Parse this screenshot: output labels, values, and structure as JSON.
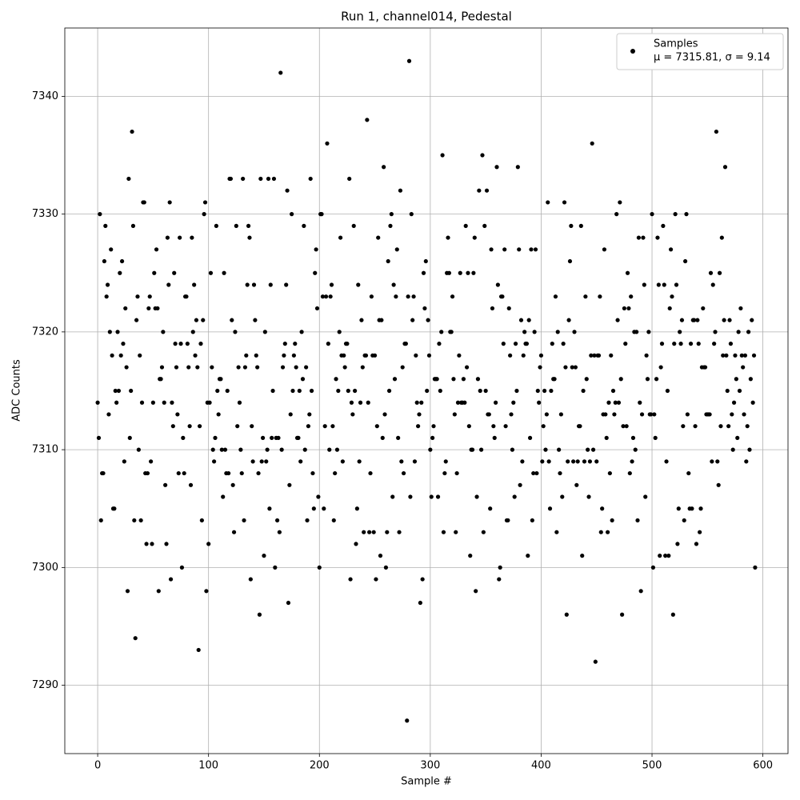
{
  "chart_data": {
    "type": "scatter",
    "title": "Run 1, channel014, Pedestal",
    "x_label": "Sample #",
    "y_label": "ADC Counts",
    "xlim": [
      -29.65,
      622.65
    ],
    "ylim": [
      7284.2,
      7345.8
    ],
    "xticks": [
      0,
      100,
      200,
      300,
      400,
      500,
      600
    ],
    "yticks": [
      7290,
      7300,
      7310,
      7320,
      7330,
      7340
    ],
    "grid": true,
    "legend": "upper right",
    "legend_note": "μ = 7315.81, σ = 9.14",
    "series": [
      {
        "name": "Samples",
        "color": "#000000",
        "x": [
          0,
          1,
          2,
          3,
          4,
          5,
          6,
          7,
          8,
          9,
          10,
          11,
          12,
          13,
          14,
          15,
          16,
          17,
          18,
          19,
          20,
          21,
          22,
          23,
          24,
          25,
          26,
          27,
          28,
          29,
          30,
          31,
          32,
          33,
          34,
          35,
          36,
          37,
          38,
          39,
          40,
          41,
          42,
          43,
          44,
          45,
          46,
          47,
          48,
          49,
          50,
          51,
          52,
          53,
          54,
          55,
          56,
          57,
          58,
          59,
          60,
          61,
          62,
          63,
          64,
          65,
          66,
          67,
          68,
          69,
          70,
          71,
          72,
          73,
          74,
          75,
          76,
          77,
          78,
          79,
          80,
          81,
          82,
          83,
          84,
          85,
          86,
          87,
          88,
          89,
          90,
          91,
          92,
          93,
          94,
          95,
          96,
          97,
          98,
          99,
          100,
          101,
          102,
          103,
          104,
          105,
          106,
          107,
          108,
          109,
          110,
          111,
          112,
          113,
          114,
          115,
          116,
          117,
          118,
          119,
          120,
          121,
          122,
          123,
          124,
          125,
          126,
          127,
          128,
          129,
          130,
          131,
          132,
          133,
          134,
          135,
          136,
          137,
          138,
          139,
          140,
          141,
          142,
          143,
          144,
          145,
          146,
          147,
          148,
          149,
          150,
          151,
          152,
          153,
          154,
          155,
          156,
          157,
          158,
          159,
          160,
          161,
          162,
          163,
          164,
          165,
          166,
          167,
          168,
          169,
          170,
          171,
          172,
          173,
          174,
          175,
          176,
          177,
          178,
          179,
          180,
          181,
          182,
          183,
          184,
          185,
          186,
          187,
          188,
          189,
          190,
          191,
          192,
          193,
          194,
          195,
          196,
          197,
          198,
          199,
          200,
          201,
          202,
          203,
          204,
          205,
          206,
          207,
          208,
          209,
          210,
          211,
          212,
          213,
          214,
          215,
          216,
          217,
          218,
          219,
          220,
          221,
          222,
          223,
          224,
          225,
          226,
          227,
          228,
          229,
          230,
          231,
          232,
          233,
          234,
          235,
          236,
          237,
          238,
          239,
          240,
          241,
          242,
          243,
          244,
          245,
          246,
          247,
          248,
          249,
          250,
          251,
          252,
          253,
          254,
          255,
          256,
          257,
          258,
          259,
          260,
          261,
          262,
          263,
          264,
          265,
          266,
          267,
          268,
          269,
          270,
          271,
          272,
          273,
          274,
          275,
          276,
          277,
          278,
          279,
          280,
          281,
          282,
          283,
          284,
          285,
          286,
          287,
          288,
          289,
          290,
          291,
          292,
          293,
          294,
          295,
          296,
          297,
          298,
          299,
          300,
          301,
          302,
          303,
          304,
          305,
          306,
          307,
          308,
          309,
          310,
          311,
          312,
          313,
          314,
          315,
          316,
          317,
          318,
          319,
          320,
          321,
          322,
          323,
          324,
          325,
          326,
          327,
          328,
          329,
          330,
          331,
          332,
          333,
          334,
          335,
          336,
          337,
          338,
          339,
          340,
          341,
          342,
          343,
          344,
          345,
          346,
          347,
          348,
          349,
          350,
          351,
          352,
          353,
          354,
          355,
          356,
          357,
          358,
          359,
          360,
          361,
          362,
          363,
          364,
          365,
          366,
          367,
          368,
          369,
          370,
          371,
          372,
          373,
          374,
          375,
          376,
          377,
          378,
          379,
          380,
          381,
          382,
          383,
          384,
          385,
          386,
          387,
          388,
          389,
          390,
          391,
          392,
          393,
          394,
          395,
          396,
          397,
          398,
          399,
          400,
          401,
          402,
          403,
          404,
          405,
          406,
          407,
          408,
          409,
          410,
          411,
          412,
          413,
          414,
          415,
          416,
          417,
          418,
          419,
          420,
          421,
          422,
          423,
          424,
          425,
          426,
          427,
          428,
          429,
          430,
          431,
          432,
          433,
          434,
          435,
          436,
          437,
          438,
          439,
          440,
          441,
          442,
          443,
          444,
          445,
          446,
          447,
          448,
          449,
          450,
          451,
          452,
          453,
          454,
          455,
          456,
          457,
          458,
          459,
          460,
          461,
          462,
          463,
          464,
          465,
          466,
          467,
          468,
          469,
          470,
          471,
          472,
          473,
          474,
          475,
          476,
          477,
          478,
          479,
          480,
          481,
          482,
          483,
          484,
          485,
          486,
          487,
          488,
          489,
          490,
          491,
          492,
          493,
          494,
          495,
          496,
          497,
          498,
          499,
          500,
          501,
          502,
          503,
          504,
          505,
          506,
          507,
          508,
          509,
          510,
          511,
          512,
          513,
          514,
          515,
          516,
          517,
          518,
          519,
          520,
          521,
          522,
          523,
          524,
          525,
          526,
          527,
          528,
          529,
          530,
          531,
          532,
          533,
          534,
          535,
          536,
          537,
          538,
          539,
          540,
          541,
          542,
          543,
          544,
          545,
          546,
          547,
          548,
          549,
          550,
          551,
          552,
          553,
          554,
          555,
          556,
          557,
          558,
          559,
          560,
          561,
          562,
          563,
          564,
          565,
          566,
          567,
          568,
          569,
          570,
          571,
          572,
          573,
          574,
          575,
          576,
          577,
          578,
          579,
          580,
          581,
          582,
          583,
          584,
          585,
          586,
          587,
          588,
          589,
          590,
          591,
          592,
          593
        ],
        "values": [
          7314,
          7311,
          7330,
          7304,
          7308,
          7308,
          7326,
          7329,
          7323,
          7324,
          7313,
          7320,
          7327,
          7318,
          7305,
          7305,
          7315,
          7314,
          7320,
          7315,
          7325,
          7318,
          7326,
          7319,
          7309,
          7322,
          7317,
          7298,
          7333,
          7311,
          7315,
          7337,
          7329,
          7304,
          7294,
          7321,
          7323,
          7310,
          7318,
          7304,
          7314,
          7331,
          7331,
          7308,
          7302,
          7308,
          7322,
          7323,
          7309,
          7302,
          7314,
          7325,
          7322,
          7327,
          7322,
          7298,
          7316,
          7316,
          7317,
          7320,
          7314,
          7307,
          7302,
          7328,
          7324,
          7331,
          7299,
          7314,
          7312,
          7325,
          7319,
          7317,
          7313,
          7308,
          7328,
          7319,
          7300,
          7311,
          7308,
          7323,
          7323,
          7319,
          7317,
          7312,
          7307,
          7328,
          7320,
          7324,
          7318,
          7321,
          7317,
          7293,
          7312,
          7319,
          7304,
          7321,
          7330,
          7331,
          7298,
          7314,
          7302,
          7314,
          7325,
          7317,
          7310,
          7309,
          7311,
          7329,
          7315,
          7313,
          7316,
          7316,
          7310,
          7306,
          7325,
          7310,
          7308,
          7315,
          7308,
          7333,
          7333,
          7321,
          7307,
          7303,
          7320,
          7329,
          7312,
          7317,
          7314,
          7310,
          7308,
          7333,
          7304,
          7317,
          7318,
          7324,
          7329,
          7328,
          7299,
          7312,
          7309,
          7324,
          7321,
          7318,
          7317,
          7308,
          7296,
          7333,
          7309,
          7311,
          7301,
          7320,
          7309,
          7310,
          7333,
          7305,
          7324,
          7311,
          7315,
          7333,
          7300,
          7311,
          7304,
          7311,
          7303,
          7342,
          7310,
          7317,
          7318,
          7319,
          7324,
          7332,
          7297,
          7307,
          7313,
          7330,
          7315,
          7318,
          7319,
          7317,
          7311,
          7311,
          7315,
          7309,
          7320,
          7316,
          7329,
          7310,
          7317,
          7304,
          7312,
          7313,
          7333,
          7315,
          7308,
          7305,
          7325,
          7327,
          7322,
          7306,
          7300,
          7330,
          7330,
          7323,
          7305,
          7312,
          7323,
          7336,
          7319,
          7310,
          7323,
          7324,
          7312,
          7304,
          7308,
          7316,
          7310,
          7315,
          7320,
          7328,
          7318,
          7309,
          7318,
          7317,
          7319,
          7319,
          7315,
          7333,
          7299,
          7314,
          7313,
          7329,
          7315,
          7302,
          7305,
          7324,
          7309,
          7314,
          7321,
          7317,
          7303,
          7318,
          7318,
          7338,
          7314,
          7303,
          7308,
          7323,
          7318,
          7303,
          7318,
          7299,
          7312,
          7328,
          7321,
          7301,
          7321,
          7311,
          7334,
          7313,
          7300,
          7303,
          7326,
          7315,
          7329,
          7330,
          7306,
          7324,
          7316,
          7323,
          7327,
          7311,
          7303,
          7332,
          7309,
          7317,
          7308,
          7319,
          7319,
          7287,
          7323,
          7343,
          7306,
          7330,
          7321,
          7323,
          7309,
          7318,
          7314,
          7312,
          7313,
          7297,
          7314,
          7299,
          7325,
          7322,
          7326,
          7315,
          7321,
          7318,
          7310,
          7306,
          7311,
          7312,
          7316,
          7316,
          7316,
          7306,
          7319,
          7315,
          7320,
          7335,
          7303,
          7308,
          7309,
          7325,
          7328,
          7325,
          7320,
          7320,
          7323,
          7316,
          7313,
          7303,
          7308,
          7314,
          7318,
          7325,
          7314,
          7314,
          7316,
          7314,
          7329,
          7317,
          7325,
          7312,
          7301,
          7310,
          7310,
          7325,
          7328,
          7298,
          7306,
          7316,
          7332,
          7315,
          7310,
          7335,
          7303,
          7329,
          7315,
          7332,
          7313,
          7313,
          7305,
          7327,
          7322,
          7312,
          7311,
          7314,
          7334,
          7324,
          7299,
          7300,
          7323,
          7323,
          7319,
          7327,
          7312,
          7304,
          7304,
          7322,
          7318,
          7313,
          7310,
          7314,
          7306,
          7319,
          7315,
          7334,
          7327,
          7307,
          7321,
          7309,
          7318,
          7320,
          7319,
          7319,
          7301,
          7321,
          7311,
          7327,
          7304,
          7308,
          7320,
          7327,
          7308,
          7315,
          7314,
          7317,
          7318,
          7309,
          7312,
          7315,
          7310,
          7313,
          7331,
          7309,
          7305,
          7315,
          7319,
          7316,
          7316,
          7323,
          7303,
          7320,
          7310,
          7308,
          7313,
          7306,
          7319,
          7331,
          7317,
          7296,
          7309,
          7321,
          7326,
          7329,
          7317,
          7309,
          7320,
          7317,
          7307,
          7309,
          7312,
          7312,
          7329,
          7301,
          7315,
          7309,
          7323,
          7316,
          7310,
          7306,
          7309,
          7318,
          7336,
          7310,
          7318,
          7292,
          7309,
          7318,
          7318,
          7323,
          7303,
          7305,
          7313,
          7327,
          7313,
          7311,
          7303,
          7314,
          7308,
          7318,
          7304,
          7315,
          7313,
          7314,
          7330,
          7321,
          7314,
          7331,
          7316,
          7296,
          7312,
          7322,
          7319,
          7312,
          7325,
          7322,
          7308,
          7323,
          7309,
          7311,
          7320,
          7310,
          7320,
          7304,
          7328,
          7314,
          7298,
          7313,
          7328,
          7324,
          7306,
          7318,
          7316,
          7320,
          7313,
          7313,
          7330,
          7300,
          7313,
          7311,
          7316,
          7328,
          7324,
          7301,
          7317,
          7319,
          7329,
          7324,
          7301,
          7309,
          7315,
          7301,
          7322,
          7327,
          7323,
          7296,
          7319,
          7330,
          7324,
          7302,
          7305,
          7320,
          7319,
          7321,
          7312,
          7304,
          7326,
          7330,
          7313,
          7308,
          7305,
          7319,
          7305,
          7321,
          7321,
          7312,
          7302,
          7321,
          7319,
          7303,
          7305,
          7317,
          7322,
          7317,
          7317,
          7313,
          7313,
          7313,
          7313,
          7325,
          7309,
          7324,
          7319,
          7320,
          7337,
          7309,
          7307,
          7325,
          7312,
          7328,
          7318,
          7321,
          7334,
          7318,
          7315,
          7312,
          7321,
          7319,
          7313,
          7310,
          7314,
          7318,
          7316,
          7311,
          7320,
          7315,
          7322,
          7318,
          7317,
          7313,
          7318,
          7309,
          7312,
          7320,
          7310,
          7316,
          7321,
          7314,
          7318,
          7300
        ]
      }
    ]
  }
}
